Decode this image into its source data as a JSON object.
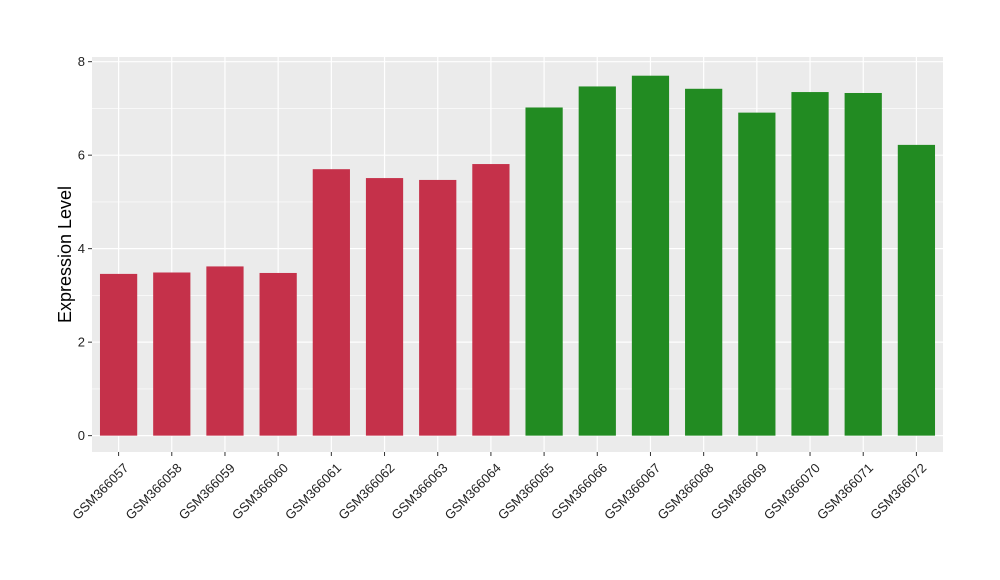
{
  "chart_data": {
    "type": "bar",
    "title": "",
    "xlabel": "",
    "ylabel": "Expression Level",
    "ylim": [
      -0.35,
      8.1
    ],
    "yticks": [
      0,
      2,
      4,
      6,
      8
    ],
    "grid": true,
    "legend": "none",
    "colors": {
      "group1": "#C5314A",
      "group2": "#228B22",
      "panel": "#EBEBEB",
      "grid": "#FFFFFF"
    },
    "categories": [
      "GSM366057",
      "GSM366058",
      "GSM366059",
      "GSM366060",
      "GSM366061",
      "GSM366062",
      "GSM366063",
      "GSM366064",
      "GSM366065",
      "GSM366066",
      "GSM366067",
      "GSM366068",
      "GSM366069",
      "GSM366070",
      "GSM366071",
      "GSM366072"
    ],
    "values": [
      3.46,
      3.49,
      3.62,
      3.48,
      5.7,
      5.51,
      5.47,
      5.81,
      7.02,
      7.47,
      7.7,
      7.42,
      6.91,
      7.35,
      7.33,
      6.22
    ],
    "groups": [
      1,
      1,
      1,
      1,
      1,
      1,
      1,
      1,
      2,
      2,
      2,
      2,
      2,
      2,
      2,
      2
    ]
  }
}
